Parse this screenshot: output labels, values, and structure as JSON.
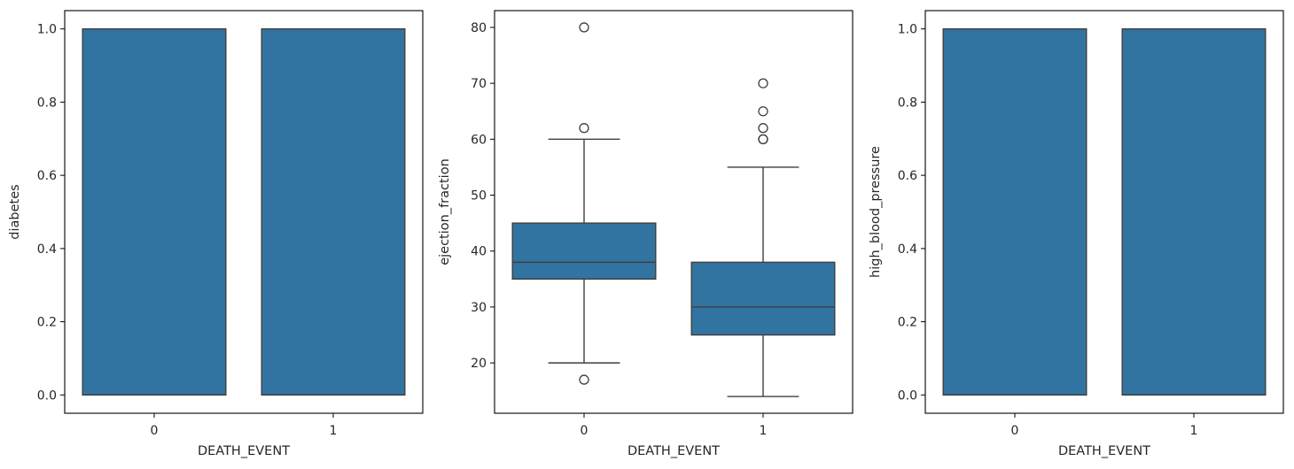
{
  "chart_data": [
    {
      "type": "box",
      "xlabel": "DEATH_EVENT",
      "ylabel": "diabetes",
      "categories": [
        "0",
        "1"
      ],
      "ylim": [
        -0.05,
        1.05
      ],
      "yticks": [
        0.0,
        0.2,
        0.4,
        0.6,
        0.8,
        1.0
      ],
      "ytick_labels": [
        "0.0",
        "0.2",
        "0.4",
        "0.6",
        "0.8",
        "1.0"
      ],
      "color": "#3274a1",
      "boxes": [
        {
          "category": "0",
          "whisker_low": 0,
          "q1": 0,
          "median": 0,
          "q3": 1,
          "whisker_high": 1,
          "outliers": []
        },
        {
          "category": "1",
          "whisker_low": 0,
          "q1": 0,
          "median": 0,
          "q3": 1,
          "whisker_high": 1,
          "outliers": []
        }
      ]
    },
    {
      "type": "box",
      "xlabel": "DEATH_EVENT",
      "ylabel": "ejection_fraction",
      "categories": [
        "0",
        "1"
      ],
      "ylim": [
        11,
        83
      ],
      "yticks": [
        20,
        30,
        40,
        50,
        60,
        70,
        80
      ],
      "ytick_labels": [
        "20",
        "30",
        "40",
        "50",
        "60",
        "70",
        "80"
      ],
      "color": "#3274a1",
      "boxes": [
        {
          "category": "0",
          "whisker_low": 20,
          "q1": 35,
          "median": 38,
          "q3": 45,
          "whisker_high": 60,
          "outliers": [
            17,
            62,
            80
          ]
        },
        {
          "category": "1",
          "whisker_low": 14,
          "q1": 25,
          "median": 30,
          "q3": 38,
          "whisker_high": 55,
          "outliers": [
            60,
            60,
            62,
            65,
            70
          ]
        }
      ]
    },
    {
      "type": "box",
      "xlabel": "DEATH_EVENT",
      "ylabel": "high_blood_pressure",
      "categories": [
        "0",
        "1"
      ],
      "ylim": [
        -0.05,
        1.05
      ],
      "yticks": [
        0.0,
        0.2,
        0.4,
        0.6,
        0.8,
        1.0
      ],
      "ytick_labels": [
        "0.0",
        "0.2",
        "0.4",
        "0.6",
        "0.8",
        "1.0"
      ],
      "color": "#3274a1",
      "boxes": [
        {
          "category": "0",
          "whisker_low": 0,
          "q1": 0,
          "median": 0,
          "q3": 1,
          "whisker_high": 1,
          "outliers": []
        },
        {
          "category": "1",
          "whisker_low": 0,
          "q1": 0,
          "median": 0,
          "q3": 1,
          "whisker_high": 1,
          "outliers": []
        }
      ]
    }
  ]
}
